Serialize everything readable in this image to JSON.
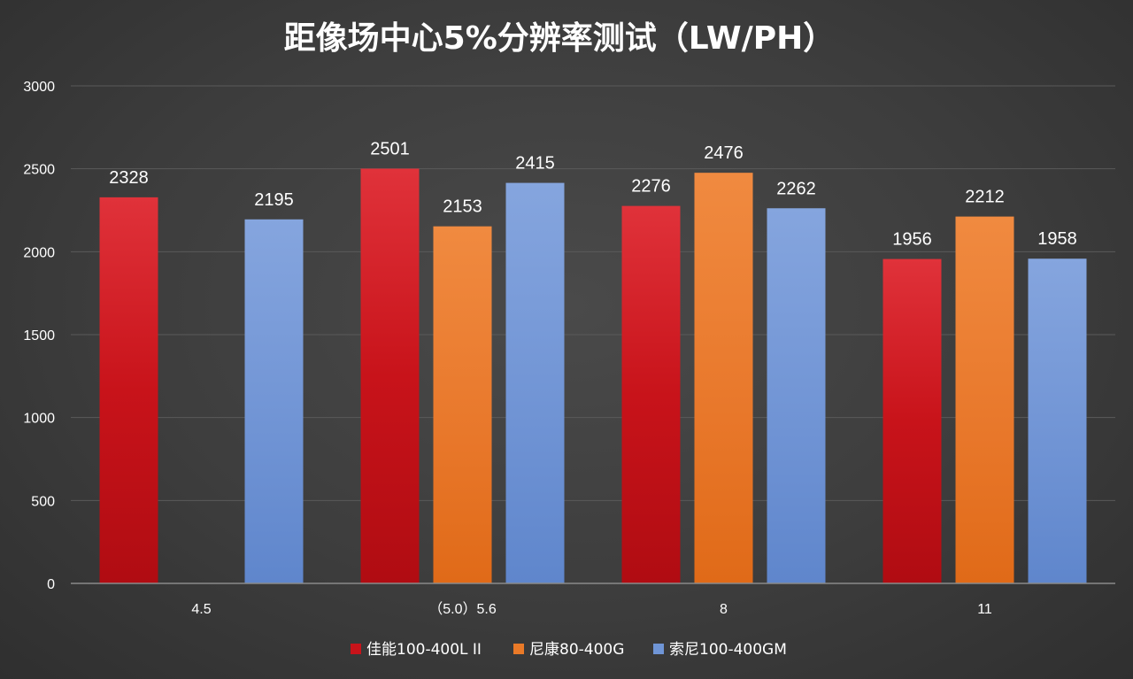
{
  "chart_data": {
    "type": "bar",
    "title": "距像场中心5%分辨率测试（LW/PH）",
    "categories": [
      "4.5",
      "（5.0）5.6",
      "8",
      "11"
    ],
    "series": [
      {
        "name": "佳能100-400L II",
        "values": [
          2328,
          2501,
          2276,
          1956
        ],
        "color": "#c8131a"
      },
      {
        "name": "尼康80-400G",
        "values": [
          null,
          2153,
          2476,
          2212
        ],
        "color": "#ea7a28"
      },
      {
        "name": "索尼100-400GM",
        "values": [
          2195,
          2415,
          2262,
          1958
        ],
        "color": "#6f95d6"
      }
    ],
    "ylim": [
      0,
      3000
    ],
    "yticks": [
      0,
      500,
      1000,
      1500,
      2000,
      2500,
      3000
    ],
    "grid": true,
    "legend_position": "bottom"
  }
}
